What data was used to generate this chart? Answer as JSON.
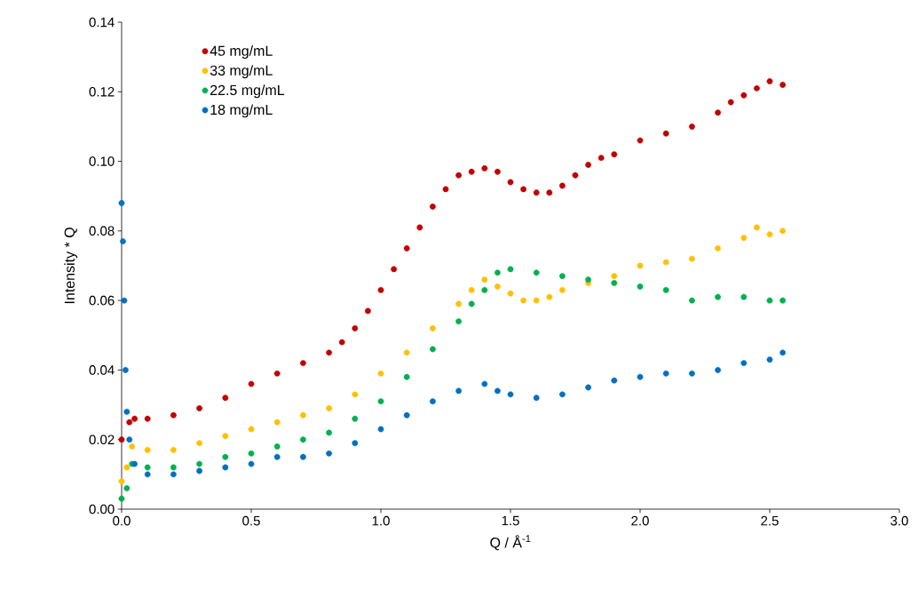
{
  "chart_data": {
    "type": "scatter",
    "xlabel": "Q / Å$^{-1}$",
    "ylabel": "Intensity * Q",
    "xlim": [
      0,
      3.0
    ],
    "ylim": [
      0,
      0.14
    ],
    "xticks": [
      {
        "value": 0,
        "label": "0.0"
      },
      {
        "value": 0.5,
        "label": "0.5"
      },
      {
        "value": 1.0,
        "label": "1.0"
      },
      {
        "value": 1.5,
        "label": "1.5"
      },
      {
        "value": 2.0,
        "label": "2.0"
      },
      {
        "value": 2.5,
        "label": "2.5"
      },
      {
        "value": 3.0,
        "label": "3.0"
      }
    ],
    "yticks": [
      {
        "value": 0,
        "label": "0.00"
      },
      {
        "value": 0.02,
        "label": "0.02"
      },
      {
        "value": 0.04,
        "label": "0.04"
      },
      {
        "value": 0.06,
        "label": "0.06"
      },
      {
        "value": 0.08,
        "label": "0.08"
      },
      {
        "value": 0.1,
        "label": "0.10"
      },
      {
        "value": 0.12,
        "label": "0.12"
      },
      {
        "value": 0.14,
        "label": "0.14"
      }
    ],
    "marker": "circle",
    "legend": "top left",
    "grid": false,
    "series": [
      {
        "name": "45 mg/mL",
        "color": "#c00000",
        "x": [
          0.0,
          0.03,
          0.05,
          0.1,
          0.2,
          0.3,
          0.4,
          0.5,
          0.6,
          0.7,
          0.8,
          0.85,
          0.9,
          0.95,
          1.0,
          1.05,
          1.1,
          1.15,
          1.2,
          1.25,
          1.3,
          1.35,
          1.4,
          1.45,
          1.5,
          1.55,
          1.6,
          1.65,
          1.7,
          1.75,
          1.8,
          1.85,
          1.9,
          2.0,
          2.1,
          2.2,
          2.3,
          2.35,
          2.4,
          2.45,
          2.5,
          2.55
        ],
        "values": [
          0.02,
          0.025,
          0.026,
          0.026,
          0.027,
          0.029,
          0.032,
          0.036,
          0.039,
          0.042,
          0.045,
          0.048,
          0.052,
          0.057,
          0.063,
          0.069,
          0.075,
          0.081,
          0.087,
          0.092,
          0.096,
          0.097,
          0.098,
          0.097,
          0.094,
          0.092,
          0.091,
          0.091,
          0.093,
          0.096,
          0.099,
          0.101,
          0.102,
          0.106,
          0.108,
          0.11,
          0.114,
          0.117,
          0.119,
          0.121,
          0.123,
          0.122
        ]
      },
      {
        "name": "33 mg/mL",
        "color": "#ffc000",
        "x": [
          0.0,
          0.02,
          0.04,
          0.1,
          0.2,
          0.3,
          0.4,
          0.5,
          0.6,
          0.7,
          0.8,
          0.9,
          1.0,
          1.1,
          1.2,
          1.3,
          1.35,
          1.4,
          1.45,
          1.5,
          1.55,
          1.6,
          1.65,
          1.7,
          1.8,
          1.9,
          2.0,
          2.1,
          2.2,
          2.3,
          2.4,
          2.45,
          2.5,
          2.55
        ],
        "values": [
          0.008,
          0.012,
          0.018,
          0.017,
          0.017,
          0.019,
          0.021,
          0.023,
          0.025,
          0.027,
          0.029,
          0.033,
          0.039,
          0.045,
          0.052,
          0.059,
          0.063,
          0.066,
          0.064,
          0.062,
          0.06,
          0.06,
          0.061,
          0.063,
          0.065,
          0.067,
          0.07,
          0.071,
          0.072,
          0.075,
          0.078,
          0.081,
          0.079,
          0.08
        ]
      },
      {
        "name": "22.5 mg/mL",
        "color": "#00b050",
        "x": [
          0.0,
          0.02,
          0.04,
          0.1,
          0.2,
          0.3,
          0.4,
          0.5,
          0.6,
          0.7,
          0.8,
          0.9,
          1.0,
          1.1,
          1.2,
          1.3,
          1.35,
          1.4,
          1.45,
          1.5,
          1.6,
          1.7,
          1.8,
          1.9,
          2.0,
          2.1,
          2.2,
          2.3,
          2.4,
          2.5,
          2.55
        ],
        "values": [
          0.003,
          0.006,
          0.013,
          0.012,
          0.012,
          0.013,
          0.015,
          0.016,
          0.018,
          0.02,
          0.022,
          0.026,
          0.031,
          0.038,
          0.046,
          0.054,
          0.059,
          0.063,
          0.068,
          0.069,
          0.068,
          0.067,
          0.066,
          0.065,
          0.064,
          0.063,
          0.06,
          0.061,
          0.061,
          0.06,
          0.06
        ]
      },
      {
        "name": "18 mg/mL",
        "color": "#0070c0",
        "x": [
          0.0,
          0.005,
          0.01,
          0.015,
          0.02,
          0.03,
          0.05,
          0.1,
          0.2,
          0.3,
          0.4,
          0.5,
          0.6,
          0.7,
          0.8,
          0.9,
          1.0,
          1.1,
          1.2,
          1.3,
          1.4,
          1.45,
          1.5,
          1.6,
          1.7,
          1.8,
          1.9,
          2.0,
          2.1,
          2.2,
          2.3,
          2.4,
          2.5,
          2.55
        ],
        "values": [
          0.088,
          0.077,
          0.06,
          0.04,
          0.028,
          0.02,
          0.013,
          0.01,
          0.01,
          0.011,
          0.012,
          0.013,
          0.015,
          0.015,
          0.016,
          0.019,
          0.023,
          0.027,
          0.031,
          0.034,
          0.036,
          0.034,
          0.033,
          0.032,
          0.033,
          0.035,
          0.037,
          0.038,
          0.039,
          0.039,
          0.04,
          0.042,
          0.043,
          0.045
        ]
      }
    ]
  }
}
